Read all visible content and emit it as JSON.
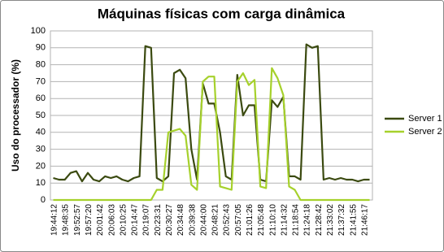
{
  "chart_data": {
    "type": "line",
    "title": "Máquinas físicas com carga dinâmica",
    "y_label": "Uso do processador (%)",
    "categories": [
      "19:44:12",
      null,
      "19:48:35",
      null,
      "19:52:57",
      null,
      "19:57:20",
      null,
      "20:01:42",
      null,
      "20:06:03",
      null,
      "20:10:25",
      null,
      "20:14:47",
      null,
      "20:19:07",
      null,
      "20:23:31",
      null,
      "20:30:27",
      null,
      "20:34:48",
      null,
      "20:39:38",
      null,
      "20:44:00",
      null,
      "20:48:21",
      null,
      "20:52:43",
      null,
      "20:57:05",
      null,
      "21:01:26",
      null,
      "21:05:48",
      null,
      "21:10:10",
      null,
      "21:14:32",
      null,
      "21:18:54",
      null,
      "21:24:18",
      null,
      "21:28:42",
      null,
      "21:33:02",
      null,
      "21:37:32",
      null,
      "21:41:55",
      null,
      "21:46:17",
      null
    ],
    "series": [
      {
        "name": "Server 1",
        "color": "#3b4a10",
        "values": [
          13,
          12,
          12,
          16,
          17,
          11,
          16,
          12,
          11,
          14,
          13,
          14,
          12,
          11,
          13,
          14,
          91,
          90,
          13,
          11,
          14,
          75,
          77,
          72,
          30,
          12,
          69,
          57,
          57,
          40,
          14,
          12,
          74,
          50,
          56,
          56,
          12,
          11,
          59,
          55,
          61,
          14,
          14,
          12,
          92,
          90,
          91,
          12,
          13,
          12,
          13,
          12,
          12,
          11,
          12,
          12
        ]
      },
      {
        "name": "Server 2",
        "color": "#a6d12c",
        "values": [
          0,
          0,
          0,
          0,
          0,
          0,
          0,
          0,
          0,
          0,
          0,
          0,
          0,
          0,
          0,
          0,
          0,
          0,
          6,
          6,
          40,
          41,
          42,
          38,
          9,
          6,
          70,
          73,
          73,
          8,
          7,
          6,
          70,
          75,
          68,
          71,
          8,
          7,
          78,
          72,
          62,
          8,
          6,
          0,
          0,
          0,
          0,
          0,
          0,
          0,
          0,
          0,
          0,
          0,
          0,
          0
        ]
      }
    ],
    "ylim": [
      0,
      100
    ],
    "yticks": [
      0,
      10,
      20,
      30,
      40,
      50,
      60,
      70,
      80,
      90,
      100
    ],
    "grid": true,
    "legend": "right"
  }
}
